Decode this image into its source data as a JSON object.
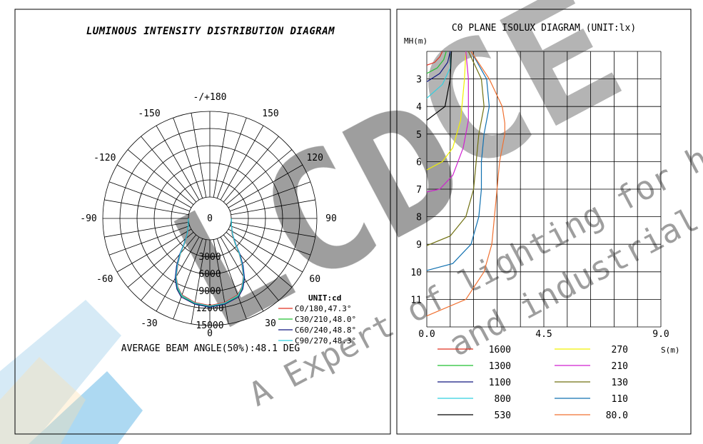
{
  "watermark": {
    "logo_text": "LCDCE",
    "tagline_1": "A Expert of lighting for harsh",
    "tagline_2": "and industrial ar"
  },
  "polar_panel": {
    "title": "LUMINOUS INTENSITY DISTRIBUTION DIAGRAM",
    "footer": "AVERAGE BEAM ANGLE(50%):48.1 DEG"
  },
  "isolux_panel": {
    "title": "C0 PLANE ISOLUX DIAGRAM (UNIT:lx)",
    "y_title": "MH(m)",
    "x_title": "S(m)"
  },
  "chart_data": [
    {
      "type": "polar",
      "title": "LUMINOUS INTENSITY DISTRIBUTION DIAGRAM",
      "unit_label": "UNIT:cd",
      "angle_labels": [
        "-/+180",
        "150",
        "120",
        "90",
        "60",
        "30",
        "0",
        "-30",
        "-60",
        "-90",
        "-120",
        "-150"
      ],
      "radial_labels": [
        "0",
        "3000",
        "6000",
        "9000",
        "12000",
        "15000"
      ],
      "radial_max": 15000,
      "series": [
        {
          "name": "C0/180,47.3°",
          "color": "#e03020",
          "angles": [
            0,
            10,
            20,
            25,
            30,
            35,
            40,
            45,
            55,
            70,
            90
          ],
          "values": [
            11500,
            11200,
            10500,
            9500,
            8000,
            6000,
            4200,
            2500,
            1000,
            300,
            0
          ]
        },
        {
          "name": "C30/210,48.0°",
          "color": "#20c030",
          "angles": [
            0,
            10,
            20,
            25,
            30,
            35,
            40,
            45,
            55,
            70,
            90
          ],
          "values": [
            11700,
            11400,
            10700,
            9700,
            8200,
            6200,
            4300,
            2600,
            1100,
            300,
            0
          ]
        },
        {
          "name": "C60/240,48.8°",
          "color": "#101880",
          "angles": [
            0,
            10,
            20,
            25,
            30,
            35,
            40,
            45,
            55,
            70,
            90
          ],
          "values": [
            11800,
            11500,
            10900,
            9900,
            8400,
            6400,
            4500,
            2700,
            1100,
            300,
            0
          ]
        },
        {
          "name": "C90/270,48.3°",
          "color": "#30d0e0",
          "angles": [
            0,
            10,
            20,
            25,
            30,
            35,
            40,
            45,
            55,
            70,
            90
          ],
          "values": [
            11600,
            11300,
            10600,
            9600,
            8100,
            6100,
            4300,
            2600,
            1050,
            300,
            0
          ]
        }
      ],
      "footer": "AVERAGE BEAM ANGLE(50%):48.1 DEG"
    },
    {
      "type": "line",
      "title": "C0 PLANE ISOLUX DIAGRAM (UNIT:lx)",
      "xlabel": "S(m)",
      "ylabel": "MH(m)",
      "xlim": [
        0,
        9
      ],
      "ylim": [
        2,
        12
      ],
      "x_tick_labels": [
        "0.0",
        "4.5",
        "9.0"
      ],
      "y_tick_labels": [
        "3",
        "4",
        "5",
        "6",
        "7",
        "8",
        "9",
        "10",
        "11"
      ],
      "grid": true,
      "series": [
        {
          "name": "1600",
          "color": "#e03020",
          "mh": [
            2.0,
            2.2,
            2.4,
            2.5
          ],
          "s": [
            0.6,
            0.5,
            0.3,
            0.0
          ]
        },
        {
          "name": "1300",
          "color": "#20c030",
          "mh": [
            2.0,
            2.3,
            2.6,
            2.8
          ],
          "s": [
            0.75,
            0.65,
            0.4,
            0.0
          ]
        },
        {
          "name": "1100",
          "color": "#101880",
          "mh": [
            2.0,
            2.4,
            2.8,
            3.1
          ],
          "s": [
            0.9,
            0.8,
            0.5,
            0.0
          ]
        },
        {
          "name": "800",
          "color": "#30d0e0",
          "mh": [
            2.0,
            2.6,
            3.2,
            3.7
          ],
          "s": [
            0.95,
            0.9,
            0.6,
            0.0
          ]
        },
        {
          "name": "530",
          "color": "#000000",
          "mh": [
            2.0,
            3.0,
            4.0,
            4.5
          ],
          "s": [
            0.95,
            0.9,
            0.7,
            0.0
          ]
        },
        {
          "name": "270",
          "color": "#f0f000",
          "mh": [
            2.0,
            3.0,
            4.5,
            5.5,
            6.0,
            6.3
          ],
          "s": [
            1.5,
            1.45,
            1.3,
            1.0,
            0.6,
            0.0
          ]
        },
        {
          "name": "210",
          "color": "#d020d0",
          "mh": [
            2.0,
            3.0,
            4.5,
            5.5,
            6.5,
            7.0,
            7.1
          ],
          "s": [
            1.5,
            1.6,
            1.6,
            1.4,
            1.0,
            0.5,
            0.0
          ]
        },
        {
          "name": "130",
          "color": "#707010",
          "mh": [
            2.0,
            3.0,
            4.0,
            5.0,
            6.0,
            7.0,
            8.0,
            8.7,
            9.05
          ],
          "s": [
            1.6,
            2.1,
            2.2,
            2.0,
            1.9,
            1.8,
            1.5,
            0.9,
            0.0
          ]
        },
        {
          "name": "110",
          "color": "#1070b0",
          "mh": [
            2.0,
            3.0,
            4.0,
            5.0,
            6.0,
            7.0,
            8.0,
            9.0,
            9.7,
            9.95
          ],
          "s": [
            1.7,
            2.3,
            2.4,
            2.2,
            2.1,
            2.1,
            2.0,
            1.7,
            1.0,
            0.0
          ]
        },
        {
          "name": "80.0",
          "color": "#f07030",
          "mh": [
            2.0,
            3.0,
            4.0,
            4.6,
            5.0,
            6.0,
            7.0,
            8.0,
            9.0,
            10.0,
            11.0,
            11.6
          ],
          "s": [
            1.7,
            2.4,
            2.9,
            3.0,
            3.0,
            2.8,
            2.7,
            2.6,
            2.5,
            2.2,
            1.5,
            0.0
          ]
        }
      ]
    }
  ]
}
